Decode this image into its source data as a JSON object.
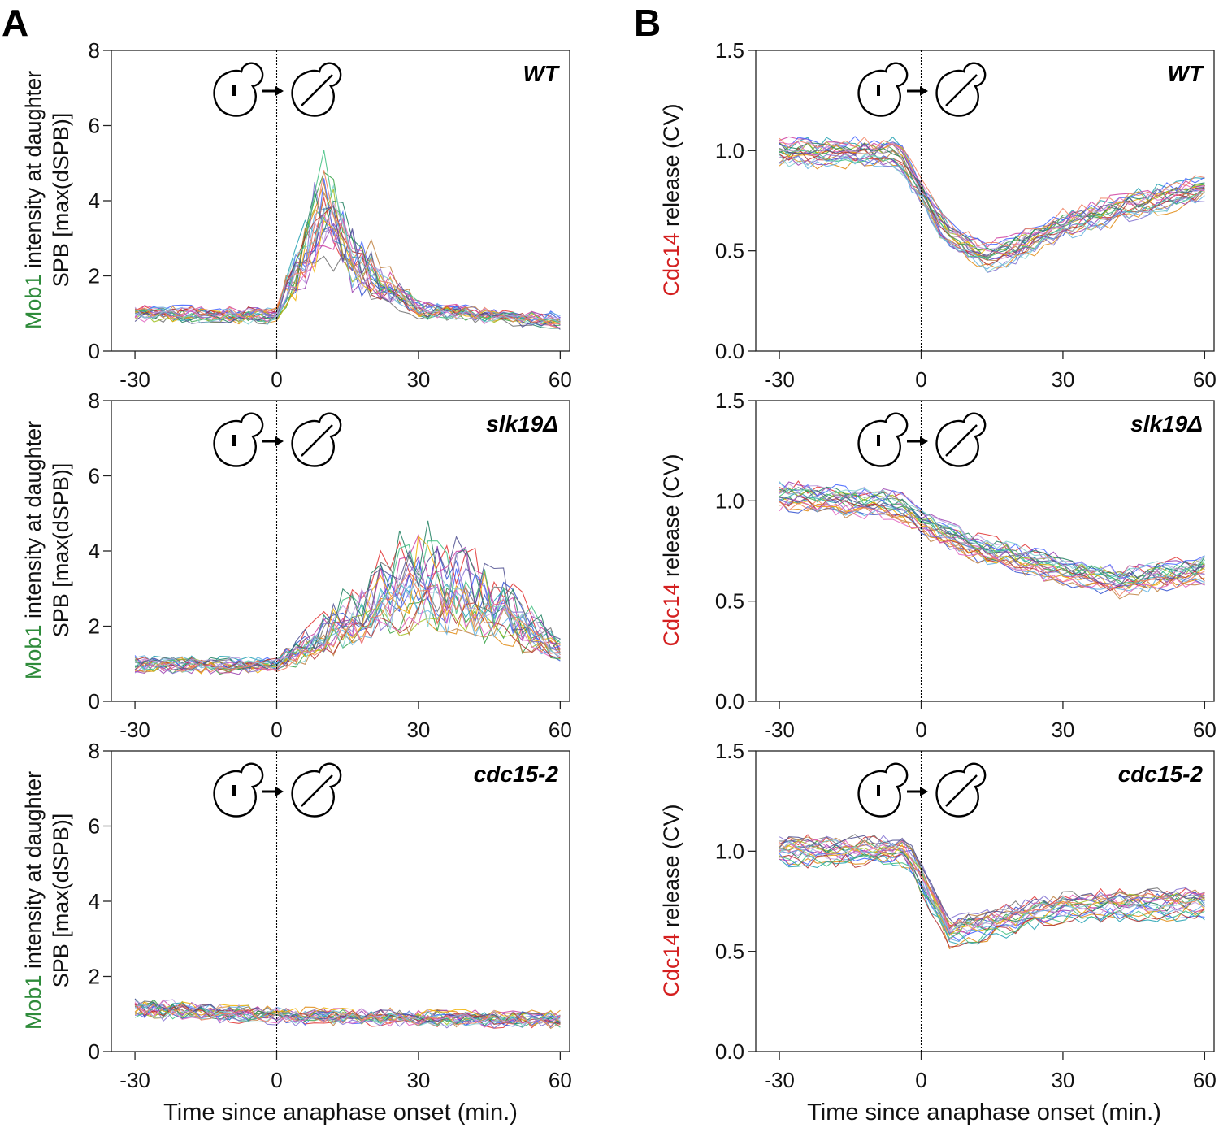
{
  "figure": {
    "panel_letters": [
      "A",
      "B"
    ],
    "x_title": "Time since anaphase onset (min.)",
    "left_ylabel": {
      "part1": "Mob1",
      "part2": " intensity at daughter",
      "line2": "SPB [max(dSPB)]",
      "part1_color": "#2e8b3a"
    },
    "right_ylabel": {
      "part1": "Cdc14",
      "part2": " release (CV)",
      "part1_color": "#d42020"
    },
    "icon": "budding-yeast-anaphase-transition-icon"
  },
  "chart_data": [
    {
      "type": "line",
      "panel": "A",
      "strain": "WT",
      "ylim": [
        0,
        8
      ],
      "yticks": [
        "0",
        "2",
        "4",
        "6",
        "8"
      ],
      "xlim": [
        -35,
        62
      ],
      "xticks": [
        "-30",
        "0",
        "30",
        "60"
      ],
      "onset_line_x": 0,
      "n_traces": 22,
      "profile": {
        "x": [
          -30,
          -1,
          0,
          6,
          10,
          16,
          30,
          60
        ],
        "y": [
          1.0,
          0.95,
          1.0,
          2.6,
          3.8,
          2.4,
          1.1,
          0.8
        ]
      }
    },
    {
      "type": "line",
      "panel": "A",
      "strain": "slk19Δ",
      "ylim": [
        0,
        8
      ],
      "yticks": [
        "0",
        "2",
        "4",
        "6",
        "8"
      ],
      "xlim": [
        -35,
        62
      ],
      "xticks": [
        "-30",
        "0",
        "30",
        "60"
      ],
      "onset_line_x": 0,
      "n_traces": 22,
      "profile": {
        "x": [
          -30,
          -1,
          0,
          6,
          14,
          24,
          30,
          40,
          50,
          60
        ],
        "y": [
          1.0,
          0.95,
          1.0,
          1.4,
          2.0,
          2.8,
          3.1,
          2.8,
          2.2,
          1.3
        ]
      }
    },
    {
      "type": "line",
      "panel": "A",
      "strain": "cdc15-2",
      "ylim": [
        0,
        8
      ],
      "yticks": [
        "0",
        "2",
        "4",
        "6",
        "8"
      ],
      "xlim": [
        -35,
        62
      ],
      "xticks": [
        "-30",
        "0",
        "30",
        "60"
      ],
      "onset_line_x": 0,
      "n_traces": 22,
      "profile": {
        "x": [
          -30,
          0,
          30,
          60
        ],
        "y": [
          1.15,
          0.95,
          0.9,
          0.85
        ]
      }
    },
    {
      "type": "line",
      "panel": "B",
      "strain": "WT",
      "ylim": [
        0,
        1.5
      ],
      "yticks": [
        "0.0",
        "0.5",
        "1.0",
        "1.5"
      ],
      "xlim": [
        -35,
        62
      ],
      "xticks": [
        "-30",
        "0",
        "30",
        "60"
      ],
      "onset_line_x": 0,
      "n_traces": 22,
      "profile": {
        "x": [
          -30,
          -5,
          0,
          5,
          14,
          20,
          30,
          45,
          60
        ],
        "y": [
          0.98,
          0.98,
          0.78,
          0.58,
          0.46,
          0.5,
          0.62,
          0.72,
          0.8
        ]
      }
    },
    {
      "type": "line",
      "panel": "B",
      "strain": "slk19Δ",
      "ylim": [
        0,
        1.5
      ],
      "yticks": [
        "0.0",
        "0.5",
        "1.0",
        "1.5"
      ],
      "xlim": [
        -35,
        62
      ],
      "xticks": [
        "-30",
        "0",
        "30",
        "60"
      ],
      "onset_line_x": 0,
      "n_traces": 22,
      "profile": {
        "x": [
          -30,
          -5,
          0,
          10,
          20,
          30,
          42,
          60
        ],
        "y": [
          1.03,
          0.98,
          0.9,
          0.78,
          0.72,
          0.66,
          0.6,
          0.66
        ]
      }
    },
    {
      "type": "line",
      "panel": "B",
      "strain": "cdc15-2",
      "ylim": [
        0,
        1.5
      ],
      "yticks": [
        "0.0",
        "0.5",
        "1.0",
        "1.5"
      ],
      "xlim": [
        -35,
        62
      ],
      "xticks": [
        "-30",
        "0",
        "30",
        "60"
      ],
      "onset_line_x": 0,
      "n_traces": 22,
      "profile": {
        "x": [
          -30,
          -3,
          1,
          6,
          12,
          30,
          60
        ],
        "y": [
          1.0,
          1.0,
          0.82,
          0.6,
          0.62,
          0.72,
          0.74
        ]
      }
    }
  ]
}
